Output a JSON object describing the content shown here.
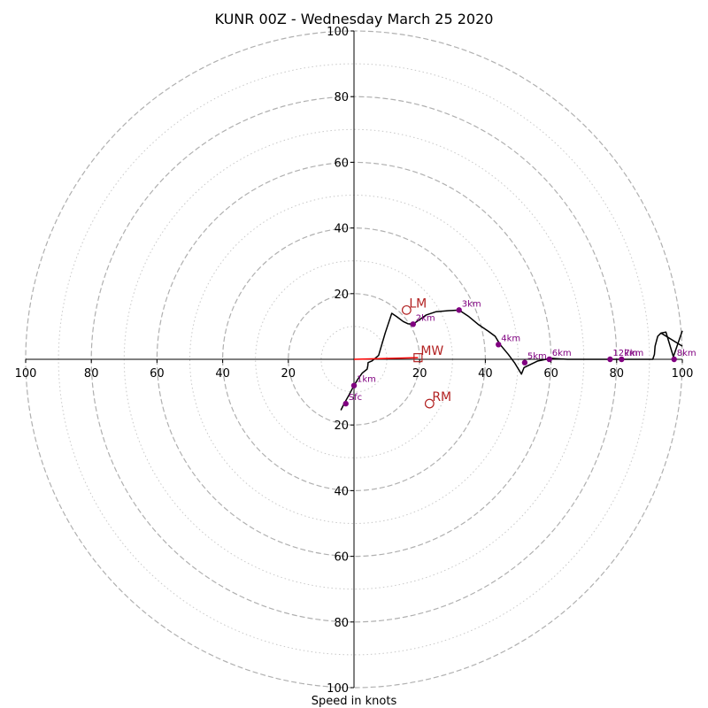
{
  "chart_data": {
    "type": "hodograph",
    "title": "KUNR 00Z - Wednesday March 25 2020",
    "xlabel": "Speed in knots",
    "max_speed": 100,
    "ring_labels": [
      "20",
      "40",
      "60",
      "80",
      "100"
    ],
    "ring_values": [
      20,
      40,
      60,
      80,
      100
    ],
    "x_tick_labels": [
      "100",
      "80",
      "60",
      "40",
      "20",
      "20",
      "40",
      "60",
      "80",
      "100"
    ],
    "x_tick_values": [
      -100,
      -80,
      -60,
      -40,
      -20,
      20,
      40,
      60,
      80,
      100
    ],
    "y_tick_labels": [
      "100",
      "80",
      "60",
      "40",
      "20",
      "20",
      "40",
      "60",
      "80",
      "100"
    ],
    "y_tick_values": [
      100,
      80,
      60,
      40,
      20,
      -20,
      -40,
      -60,
      -80,
      -100
    ],
    "dashed_rings": [
      20,
      40,
      60,
      80,
      100
    ],
    "dotted_rings": [
      10,
      30,
      50,
      70,
      90
    ],
    "colors": {
      "trace": "#000000",
      "height_marker": "#800080",
      "motion": "#b22222",
      "mean_wind_vector": "#ff0000",
      "ring_dashed": "#b0b0b0",
      "ring_dotted": "#c8c8c8"
    },
    "trace": [
      [
        -4,
        -15.5
      ],
      [
        -3,
        -13.5
      ],
      [
        -1.6,
        -11
      ],
      [
        0,
        -8
      ],
      [
        1.2,
        -6
      ],
      [
        2.5,
        -4.2
      ],
      [
        4,
        -3
      ],
      [
        4.2,
        -2
      ],
      [
        4.3,
        -1
      ],
      [
        5.5,
        -0.5
      ],
      [
        7.5,
        1.2
      ],
      [
        9.5,
        8
      ],
      [
        11.5,
        14
      ],
      [
        13,
        13
      ],
      [
        15,
        11.5
      ],
      [
        16.5,
        10.8
      ],
      [
        18,
        10.7
      ],
      [
        22,
        13.5
      ],
      [
        25,
        14.5
      ],
      [
        28.5,
        14.8
      ],
      [
        32,
        15
      ],
      [
        35,
        13
      ],
      [
        38,
        10.5
      ],
      [
        41,
        8.5
      ],
      [
        43,
        7
      ],
      [
        44.5,
        4.5
      ],
      [
        47,
        1.5
      ],
      [
        49,
        -1.2
      ],
      [
        51,
        -4.5
      ],
      [
        51.8,
        -2.5
      ],
      [
        56,
        -0.5
      ],
      [
        60,
        0.3
      ],
      [
        65,
        0
      ],
      [
        70,
        0
      ],
      [
        78,
        0
      ],
      [
        82,
        0
      ],
      [
        88,
        0
      ],
      [
        91,
        0
      ],
      [
        91.5,
        1.5
      ],
      [
        91.7,
        4
      ],
      [
        92.5,
        7
      ],
      [
        93.5,
        8
      ],
      [
        95,
        8.3
      ],
      [
        97.5,
        0
      ],
      [
        97,
        0
      ],
      [
        100,
        8.7
      ]
    ],
    "trace_tail": [
      [
        93.5,
        8
      ],
      [
        100,
        4
      ]
    ],
    "heights": [
      {
        "label": "Sfc",
        "u": -2.5,
        "v": -13.5
      },
      {
        "label": "1km",
        "u": 0,
        "v": -8
      },
      {
        "label": "2km",
        "u": 18,
        "v": 10.7
      },
      {
        "label": "3km",
        "u": 32,
        "v": 15
      },
      {
        "label": "4km",
        "u": 44,
        "v": 4.5
      },
      {
        "label": "5km",
        "u": 52,
        "v": -1
      },
      {
        "label": "6km",
        "u": 59.5,
        "v": 0
      },
      {
        "label": "12km",
        "u": 78,
        "v": 0
      },
      {
        "label": "7km",
        "u": 81.5,
        "v": 0
      },
      {
        "label": "8km",
        "u": 97.5,
        "v": 0
      }
    ],
    "storm_motion": [
      {
        "label": "LM",
        "u": 16,
        "v": 15,
        "marker": "circle"
      },
      {
        "label": "RM",
        "u": 23,
        "v": -13.5,
        "marker": "circle"
      },
      {
        "label": "MW",
        "u": 19.5,
        "v": 0.5,
        "marker": "square"
      }
    ],
    "mean_wind_vector": {
      "from": [
        0,
        0
      ],
      "to": [
        19.5,
        0.5
      ]
    }
  }
}
